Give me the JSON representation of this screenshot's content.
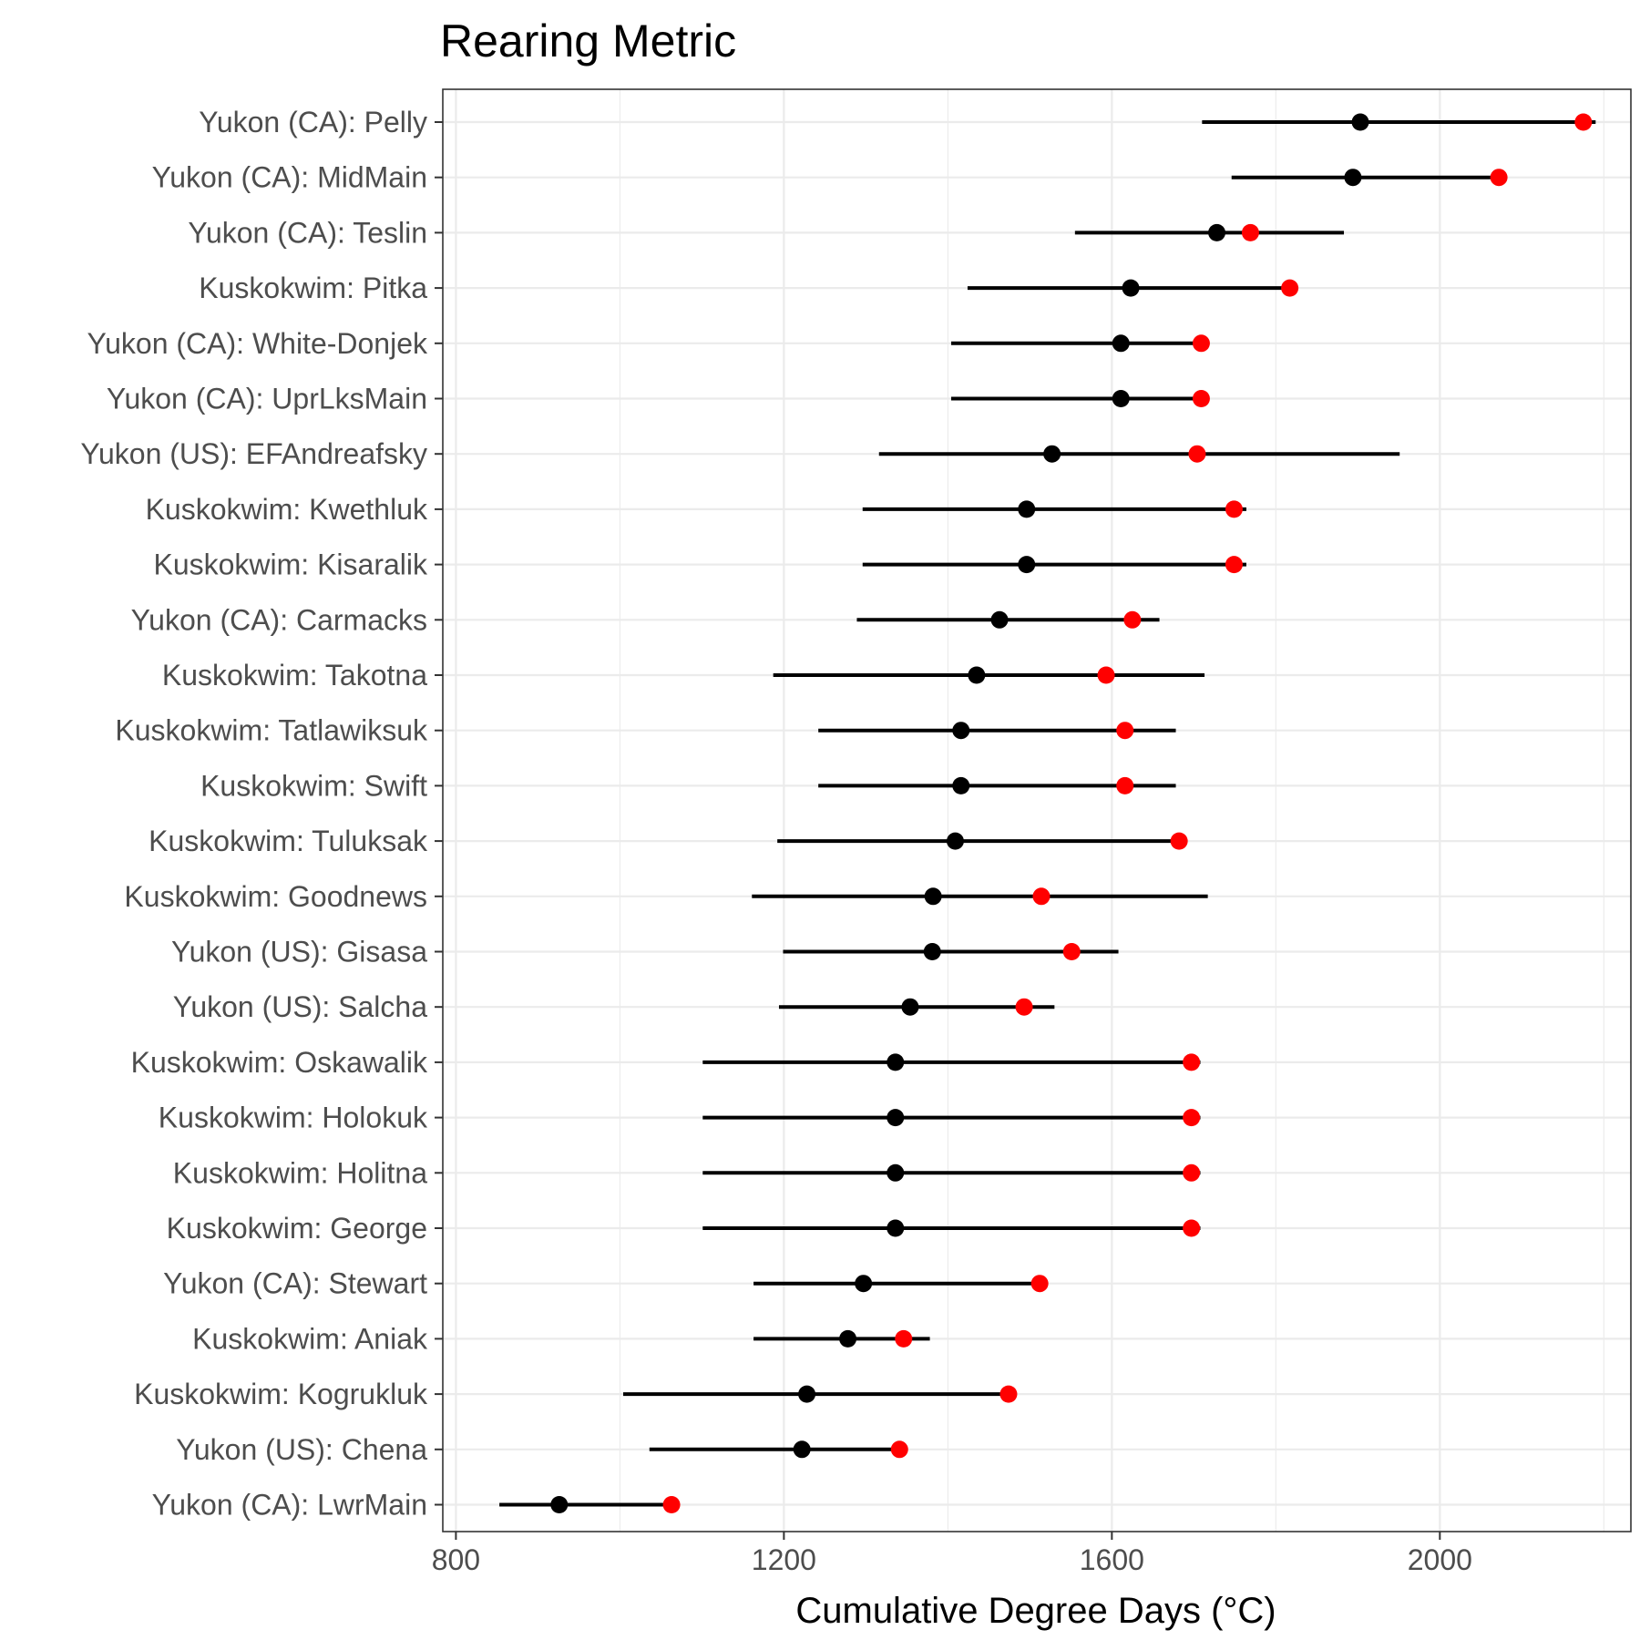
{
  "chart_data": {
    "type": "dot-interval",
    "title": "Rearing Metric",
    "xlabel": "Cumulative Degree Days (°C)",
    "ylabel": "",
    "xlim": [
      784,
      2233
    ],
    "xticks": [
      800,
      1200,
      1600,
      2000
    ],
    "grid": true,
    "colors": {
      "median": "#000000",
      "highlight": "#ff0000",
      "interval": "#000000",
      "grid": "#ebebeb"
    },
    "rows": [
      {
        "label": "Yukon (CA): Pelly",
        "low": 1710,
        "high": 2190,
        "median": 1903,
        "highlight": 2175
      },
      {
        "label": "Yukon (CA): MidMain",
        "low": 1746,
        "high": 2072,
        "median": 1894,
        "highlight": 2072
      },
      {
        "label": "Yukon (CA): Teslin",
        "low": 1555,
        "high": 1883,
        "median": 1728,
        "highlight": 1769
      },
      {
        "label": "Kuskokwim: Pitka",
        "low": 1424,
        "high": 1822,
        "median": 1623,
        "highlight": 1817
      },
      {
        "label": "Yukon (CA): White-Donjek",
        "low": 1404,
        "high": 1704,
        "median": 1611,
        "highlight": 1709
      },
      {
        "label": "Yukon (CA): UprLksMain",
        "low": 1404,
        "high": 1704,
        "median": 1611,
        "highlight": 1709
      },
      {
        "label": "Yukon (US): EFAndreafsky",
        "low": 1316,
        "high": 1951,
        "median": 1527,
        "highlight": 1704
      },
      {
        "label": "Kuskokwim: Kwethluk",
        "low": 1296,
        "high": 1764,
        "median": 1496,
        "highlight": 1749
      },
      {
        "label": "Kuskokwim: Kisaralik",
        "low": 1296,
        "high": 1764,
        "median": 1496,
        "highlight": 1749
      },
      {
        "label": "Yukon (CA): Carmacks",
        "low": 1289,
        "high": 1658,
        "median": 1463,
        "highlight": 1625
      },
      {
        "label": "Kuskokwim: Takotna",
        "low": 1187,
        "high": 1713,
        "median": 1435,
        "highlight": 1593
      },
      {
        "label": "Kuskokwim: Tatlawiksuk",
        "low": 1242,
        "high": 1678,
        "median": 1416,
        "highlight": 1616
      },
      {
        "label": "Kuskokwim: Swift",
        "low": 1242,
        "high": 1678,
        "median": 1416,
        "highlight": 1616
      },
      {
        "label": "Kuskokwim: Tuluksak",
        "low": 1192,
        "high": 1690,
        "median": 1409,
        "highlight": 1682
      },
      {
        "label": "Kuskokwim: Goodnews",
        "low": 1161,
        "high": 1717,
        "median": 1382,
        "highlight": 1514
      },
      {
        "label": "Yukon (US): Gisasa",
        "low": 1199,
        "high": 1608,
        "median": 1381,
        "highlight": 1551
      },
      {
        "label": "Yukon (US): Salcha",
        "low": 1194,
        "high": 1530,
        "median": 1354,
        "highlight": 1493
      },
      {
        "label": "Kuskokwim: Oskawalik",
        "low": 1101,
        "high": 1708,
        "median": 1336,
        "highlight": 1697
      },
      {
        "label": "Kuskokwim: Holokuk",
        "low": 1101,
        "high": 1708,
        "median": 1336,
        "highlight": 1697
      },
      {
        "label": "Kuskokwim: Holitna",
        "low": 1101,
        "high": 1708,
        "median": 1336,
        "highlight": 1697
      },
      {
        "label": "Kuskokwim: George",
        "low": 1101,
        "high": 1708,
        "median": 1336,
        "highlight": 1697
      },
      {
        "label": "Yukon (CA): Stewart",
        "low": 1163,
        "high": 1512,
        "median": 1297,
        "highlight": 1512
      },
      {
        "label": "Kuskokwim: Aniak",
        "low": 1163,
        "high": 1378,
        "median": 1278,
        "highlight": 1346
      },
      {
        "label": "Kuskokwim: Kogrukluk",
        "low": 1004,
        "high": 1474,
        "median": 1228,
        "highlight": 1474
      },
      {
        "label": "Yukon (US): Chena",
        "low": 1036,
        "high": 1341,
        "median": 1222,
        "highlight": 1341
      },
      {
        "label": "Yukon (CA): LwrMain",
        "low": 853,
        "high": 1063,
        "median": 926,
        "highlight": 1063
      }
    ]
  }
}
